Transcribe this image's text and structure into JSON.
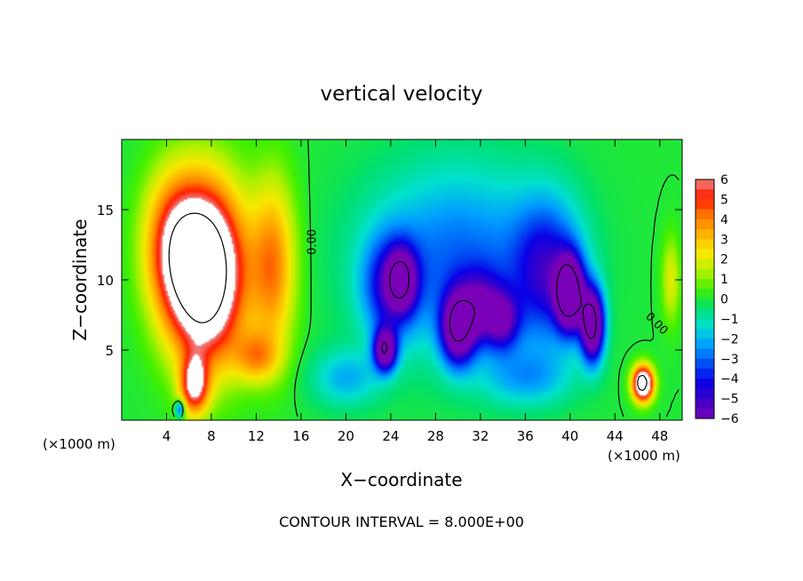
{
  "chart_data": {
    "type": "heatmap",
    "title": "vertical velocity",
    "xlabel": "X−coordinate",
    "ylabel": "Z−coordinate",
    "x_unit_left": "(×1000 m)",
    "x_unit_right": "(×1000 m)",
    "footer": "CONTOUR INTERVAL = 8.000E+00",
    "xlim": [
      0,
      50
    ],
    "ylim": [
      0,
      20
    ],
    "x_ticks": [
      4,
      8,
      12,
      16,
      20,
      24,
      28,
      32,
      36,
      40,
      44,
      48
    ],
    "y_ticks": [
      5,
      10,
      15
    ],
    "contour_labels": [
      {
        "text": "0.00",
        "x": 17.3,
        "z": 12.7
      },
      {
        "text": "0.00",
        "x": 47.5,
        "z": 6.7
      }
    ],
    "colorbar": {
      "min": -6,
      "max": 6,
      "ticks": [
        6,
        5,
        4,
        3,
        2,
        1,
        0,
        -1,
        -2,
        -3,
        -4,
        -5,
        -6
      ],
      "tick_labels": [
        "6",
        "5",
        "4",
        "3",
        "2",
        "1",
        "0",
        "−1",
        "−2",
        "−3",
        "−4",
        "−5",
        "−6"
      ]
    },
    "features": [
      {
        "kind": "updraft",
        "x": 7.5,
        "z": 10.5,
        "sx": 3.3,
        "sz": 6.0,
        "amp": 11
      },
      {
        "kind": "updraft",
        "x": 4.5,
        "z": 12.5,
        "sx": 2.6,
        "sz": 5.0,
        "amp": 4
      },
      {
        "kind": "updraft",
        "x": 13.5,
        "z": 11.0,
        "sx": 2.0,
        "sz": 6.0,
        "amp": 4
      },
      {
        "kind": "updraft",
        "x": 6.5,
        "z": 2.5,
        "sx": 1.2,
        "sz": 2.0,
        "amp": 6
      },
      {
        "kind": "updraft",
        "x": 12.0,
        "z": 4.5,
        "sx": 2.0,
        "sz": 1.8,
        "amp": 3
      },
      {
        "kind": "updraft",
        "x": 46.5,
        "z": 2.6,
        "sx": 0.9,
        "sz": 1.2,
        "amp": 10
      },
      {
        "kind": "updraft",
        "x": 49.0,
        "z": 10.0,
        "sx": 0.8,
        "sz": 3.0,
        "amp": 2
      },
      {
        "kind": "downdraft",
        "x": 30.0,
        "z": 11.5,
        "sx": 8.0,
        "sz": 6.5,
        "amp": -3
      },
      {
        "kind": "downdraft",
        "x": 24.0,
        "z": 9.5,
        "sx": 2.4,
        "sz": 3.5,
        "amp": -4
      },
      {
        "kind": "downdraft",
        "x": 25.0,
        "z": 10.0,
        "sx": 1.2,
        "sz": 2.0,
        "amp": -5
      },
      {
        "kind": "downdraft",
        "x": 23.5,
        "z": 5.0,
        "sx": 1.0,
        "sz": 1.5,
        "amp": -7
      },
      {
        "kind": "downdraft",
        "x": 30.0,
        "z": 6.5,
        "sx": 1.5,
        "sz": 2.5,
        "amp": -7
      },
      {
        "kind": "downdraft",
        "x": 32.0,
        "z": 8.0,
        "sx": 2.0,
        "sz": 2.5,
        "amp": -4
      },
      {
        "kind": "downdraft",
        "x": 34.0,
        "z": 7.0,
        "sx": 1.5,
        "sz": 2.0,
        "amp": -4
      },
      {
        "kind": "downdraft",
        "x": 38.0,
        "z": 10.5,
        "sx": 3.0,
        "sz": 5.0,
        "amp": -4
      },
      {
        "kind": "downdraft",
        "x": 40.0,
        "z": 9.0,
        "sx": 1.2,
        "sz": 2.5,
        "amp": -9
      },
      {
        "kind": "downdraft",
        "x": 42.0,
        "z": 6.8,
        "sx": 1.0,
        "sz": 2.5,
        "amp": -9
      },
      {
        "kind": "downdraft",
        "x": 20.0,
        "z": 3.0,
        "sx": 3.0,
        "sz": 2.0,
        "amp": -2
      },
      {
        "kind": "downdraft",
        "x": 36.0,
        "z": 3.0,
        "sx": 4.0,
        "sz": 2.0,
        "amp": -2
      },
      {
        "kind": "downdraft",
        "x": 5.2,
        "z": 0.8,
        "sx": 0.4,
        "sz": 0.6,
        "amp": -4
      }
    ]
  },
  "colors": {
    "background": "#ffffff",
    "colormap": [
      "#7a00b8",
      "#3c00c8",
      "#0a00e6",
      "#0050f5",
      "#00a0ff",
      "#00e0d0",
      "#00e070",
      "#40f000",
      "#b4f000",
      "#f8e800",
      "#ffb400",
      "#ff7a00",
      "#ff1e00",
      "#f08080",
      "#ffffff"
    ]
  }
}
